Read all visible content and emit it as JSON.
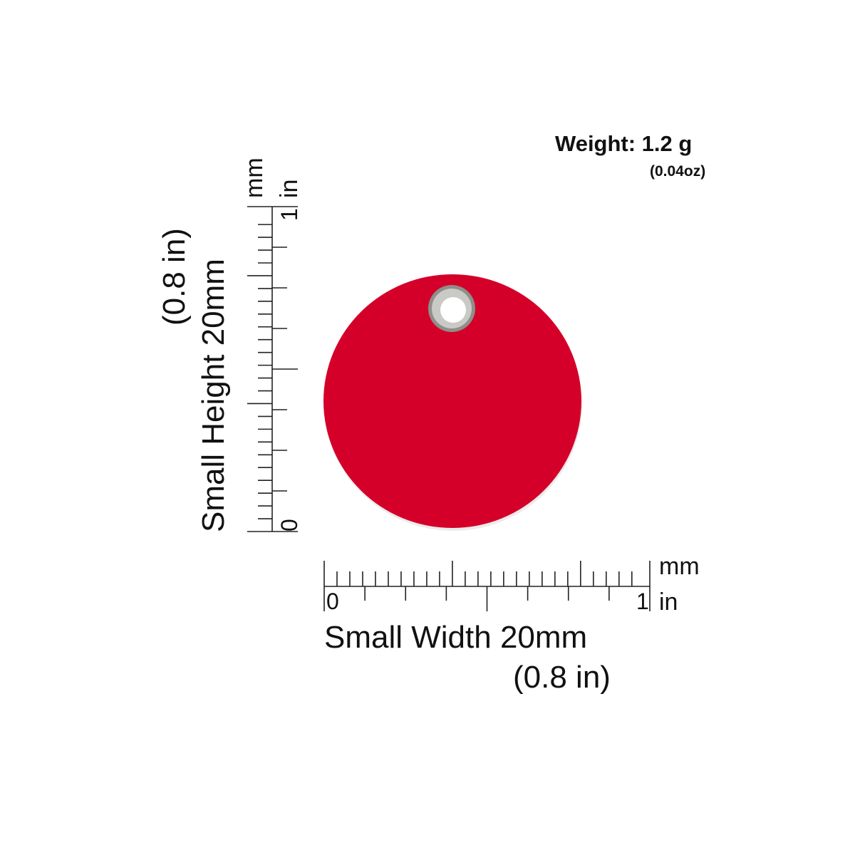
{
  "weight": {
    "label": "Weight: 1.2 g",
    "ounces": "(0.04oz)"
  },
  "width": {
    "label": "Small Width 20mm",
    "inches": "(0.8 in)"
  },
  "height": {
    "label": "Small Height 20mm",
    "inches": "(0.8 in)"
  },
  "ruler": {
    "mm_unit": "mm",
    "in_unit": "in",
    "zero": "0",
    "one": "1",
    "mm_max": 25,
    "in_max": 1
  },
  "tag": {
    "shape": "round",
    "color": "#d50029",
    "ring_color": "#b8b8b4"
  }
}
